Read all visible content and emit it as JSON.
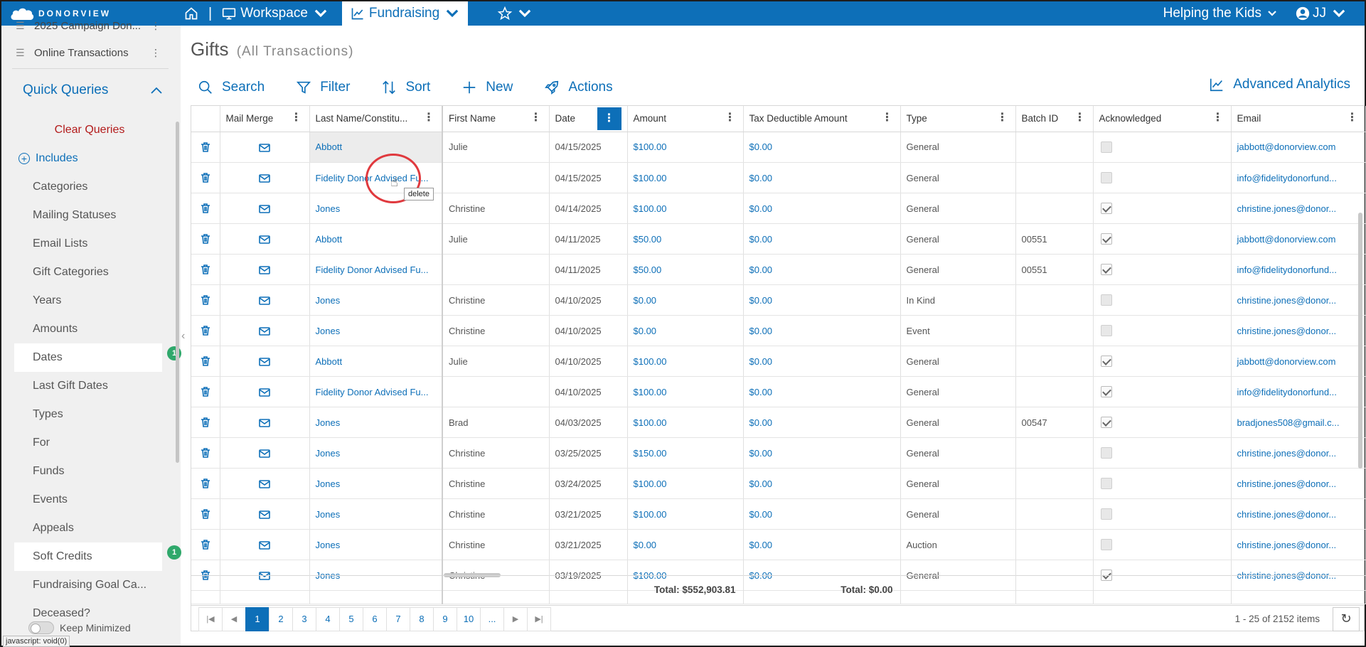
{
  "brand": {
    "name": "DONORVIEW"
  },
  "nav": {
    "workspace_label": "Workspace",
    "fundraising_label": "Fundraising",
    "org_label": "Helping the Kids",
    "user_initials": "JJ"
  },
  "sidebar": {
    "partial_item": "2025 Campaign Don...",
    "online_transactions": "Online Transactions",
    "quick_queries": "Quick Queries",
    "clear_queries": "Clear Queries",
    "includes": "Includes",
    "items": [
      {
        "label": "Categories"
      },
      {
        "label": "Mailing Statuses"
      },
      {
        "label": "Email Lists"
      },
      {
        "label": "Gift Categories"
      },
      {
        "label": "Years"
      },
      {
        "label": "Amounts"
      },
      {
        "label": "Dates",
        "badge": "1"
      },
      {
        "label": "Last Gift Dates"
      },
      {
        "label": "Types"
      },
      {
        "label": "For"
      },
      {
        "label": "Funds"
      },
      {
        "label": "Events"
      },
      {
        "label": "Appeals"
      },
      {
        "label": "Soft Credits",
        "badge": "1"
      },
      {
        "label": "Fundraising Goal Ca..."
      },
      {
        "label": "Deceased?"
      }
    ],
    "keep_minimized": "Keep Minimized",
    "status_url": "javascript: void(0)"
  },
  "page": {
    "title": "Gifts",
    "subtitle": "(All Transactions)"
  },
  "toolbar": {
    "search": "Search",
    "filter": "Filter",
    "sort": "Sort",
    "new": "New",
    "actions": "Actions",
    "analytics": "Advanced Analytics"
  },
  "grid": {
    "columns": {
      "mail_merge": "Mail Merge",
      "last_name": "Last Name/Constitu...",
      "first_name": "First Name",
      "date": "Date",
      "amount": "Amount",
      "tax": "Tax Deductible Amount",
      "type": "Type",
      "batch": "Batch ID",
      "ack": "Acknowledged",
      "email": "Email"
    },
    "rows": [
      {
        "last": "Abbott",
        "first": "Julie",
        "date": "04/15/2025",
        "amount": "$100.00",
        "tax": "$0.00",
        "type": "General",
        "batch": "",
        "ack": false,
        "email": "jabbott@donorview.com"
      },
      {
        "last": "Fidelity Donor Advised Fu...",
        "first": "",
        "date": "04/15/2025",
        "amount": "$100.00",
        "tax": "$0.00",
        "type": "General",
        "batch": "",
        "ack": false,
        "email": "info@fidelitydonorfund..."
      },
      {
        "last": "Jones",
        "first": "Christine",
        "date": "04/14/2025",
        "amount": "$100.00",
        "tax": "$0.00",
        "type": "General",
        "batch": "",
        "ack": true,
        "email": "christine.jones@donor..."
      },
      {
        "last": "Abbott",
        "first": "Julie",
        "date": "04/11/2025",
        "amount": "$50.00",
        "tax": "$0.00",
        "type": "General",
        "batch": "00551",
        "ack": true,
        "email": "jabbott@donorview.com"
      },
      {
        "last": "Fidelity Donor Advised Fu...",
        "first": "",
        "date": "04/11/2025",
        "amount": "$50.00",
        "tax": "$0.00",
        "type": "General",
        "batch": "00551",
        "ack": true,
        "email": "info@fidelitydonorfund..."
      },
      {
        "last": "Jones",
        "first": "Christine",
        "date": "04/10/2025",
        "amount": "$0.00",
        "tax": "$0.00",
        "type": "In Kind",
        "batch": "",
        "ack": false,
        "email": "christine.jones@donor..."
      },
      {
        "last": "Jones",
        "first": "Christine",
        "date": "04/10/2025",
        "amount": "$0.00",
        "tax": "$0.00",
        "type": "Event",
        "batch": "",
        "ack": false,
        "email": "christine.jones@donor..."
      },
      {
        "last": "Abbott",
        "first": "Julie",
        "date": "04/10/2025",
        "amount": "$100.00",
        "tax": "$0.00",
        "type": "General",
        "batch": "",
        "ack": true,
        "email": "jabbott@donorview.com"
      },
      {
        "last": "Fidelity Donor Advised Fu...",
        "first": "",
        "date": "04/10/2025",
        "amount": "$100.00",
        "tax": "$0.00",
        "type": "General",
        "batch": "",
        "ack": true,
        "email": "info@fidelitydonorfund..."
      },
      {
        "last": "Jones",
        "first": "Brad",
        "date": "04/03/2025",
        "amount": "$100.00",
        "tax": "$0.00",
        "type": "General",
        "batch": "00547",
        "ack": true,
        "email": "bradjones508@gmail.c..."
      },
      {
        "last": "Jones",
        "first": "Christine",
        "date": "03/25/2025",
        "amount": "$150.00",
        "tax": "$0.00",
        "type": "General",
        "batch": "",
        "ack": false,
        "email": "christine.jones@donor..."
      },
      {
        "last": "Jones",
        "first": "Christine",
        "date": "03/24/2025",
        "amount": "$100.00",
        "tax": "$0.00",
        "type": "General",
        "batch": "",
        "ack": false,
        "email": "christine.jones@donor..."
      },
      {
        "last": "Jones",
        "first": "Christine",
        "date": "03/21/2025",
        "amount": "$100.00",
        "tax": "$0.00",
        "type": "General",
        "batch": "",
        "ack": false,
        "email": "christine.jones@donor..."
      },
      {
        "last": "Jones",
        "first": "Christine",
        "date": "03/21/2025",
        "amount": "$0.00",
        "tax": "$0.00",
        "type": "Auction",
        "batch": "",
        "ack": false,
        "email": "christine.jones@donor..."
      },
      {
        "last": "Jones",
        "first": "Christine",
        "date": "03/19/2025",
        "amount": "$100.00",
        "tax": "$0.00",
        "type": "General",
        "batch": "",
        "ack": true,
        "email": "christine.jones@donor..."
      }
    ],
    "totals": {
      "amount": "Total: $552,903.81",
      "tax": "Total: $0.00"
    }
  },
  "pager": {
    "pages": [
      "1",
      "2",
      "3",
      "4",
      "5",
      "6",
      "7",
      "8",
      "9",
      "10",
      "..."
    ],
    "current": "1",
    "info": "1 - 25 of 2152 items"
  },
  "tooltip": {
    "text": "delete"
  },
  "colors": {
    "brand": "#0d6fb8",
    "clear": "#b31b1b",
    "badge": "#2fa86b",
    "highlight": "#e0393e"
  }
}
